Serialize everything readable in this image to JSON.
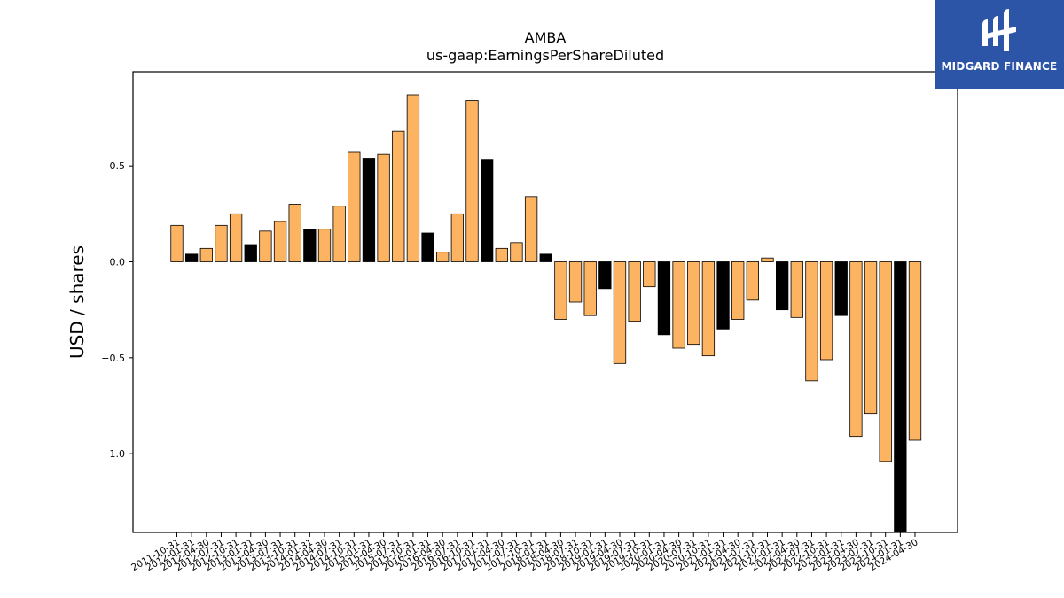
{
  "chart_data": {
    "type": "bar",
    "title": "AMBA",
    "subtitle": "us-gaap:EarningsPerShareDiluted",
    "xlabel": "",
    "ylabel": "USD / shares",
    "ylim": [
      -1.41,
      0.99
    ],
    "yticks": [
      0.5,
      0.0,
      -0.5,
      -1.0
    ],
    "ytick_labels": [
      "0.5",
      "0.0",
      "−0.5",
      "−1.0"
    ],
    "grid": false,
    "colors": {
      "quarter": "#fdb462",
      "annual": "#000000",
      "edge": "#000000"
    },
    "categories": [
      "2011-10-31",
      "2012-01-31",
      "2012-04-30",
      "2012-07-31",
      "2012-10-31",
      "2013-01-31",
      "2013-04-30",
      "2013-07-31",
      "2013-10-31",
      "2014-01-31",
      "2014-04-30",
      "2014-07-31",
      "2014-10-31",
      "2015-01-31",
      "2015-04-30",
      "2015-07-31",
      "2015-10-31",
      "2016-01-31",
      "2016-04-30",
      "2016-07-31",
      "2016-10-31",
      "2017-01-31",
      "2017-04-30",
      "2017-07-31",
      "2017-10-31",
      "2018-01-31",
      "2018-04-30",
      "2018-07-31",
      "2018-10-31",
      "2019-01-31",
      "2019-04-30",
      "2019-07-31",
      "2019-10-31",
      "2020-01-31",
      "2020-04-30",
      "2020-07-31",
      "2020-10-31",
      "2021-01-31",
      "2021-04-30",
      "2021-07-31",
      "2021-10-31",
      "2022-01-31",
      "2022-04-30",
      "2022-07-31",
      "2022-10-31",
      "2023-01-31",
      "2023-04-30",
      "2023-07-31",
      "2023-10-31",
      "2024-01-31",
      "2024-04-30"
    ],
    "bar_kinds": [
      "q",
      "a",
      "q",
      "q",
      "q",
      "a",
      "q",
      "q",
      "q",
      "a",
      "q",
      "q",
      "q",
      "a",
      "q",
      "q",
      "q",
      "a",
      "q",
      "q",
      "q",
      "a",
      "q",
      "q",
      "q",
      "a",
      "q",
      "q",
      "q",
      "a",
      "q",
      "q",
      "q",
      "a",
      "q",
      "q",
      "q",
      "a",
      "q",
      "q",
      "q",
      "a",
      "q",
      "q",
      "q",
      "a",
      "q",
      "q",
      "q",
      "a",
      "q"
    ],
    "values": [
      0.19,
      0.04,
      0.07,
      0.19,
      0.25,
      0.09,
      0.16,
      0.21,
      0.3,
      0.17,
      0.17,
      0.29,
      0.57,
      0.54,
      0.56,
      0.68,
      0.87,
      0.15,
      0.05,
      0.25,
      0.84,
      0.53,
      0.07,
      0.1,
      0.34,
      0.04,
      -0.3,
      -0.21,
      -0.28,
      -0.14,
      -0.53,
      -0.31,
      -0.13,
      -0.38,
      -0.45,
      -0.43,
      -0.49,
      -0.35,
      -0.3,
      -0.2,
      0.02,
      -0.25,
      -0.29,
      -0.62,
      -0.51,
      -0.28,
      -0.91,
      -0.79,
      -1.04,
      -1.41,
      -0.93
    ]
  },
  "logo": {
    "text": "MIDGARD FINANCE"
  }
}
